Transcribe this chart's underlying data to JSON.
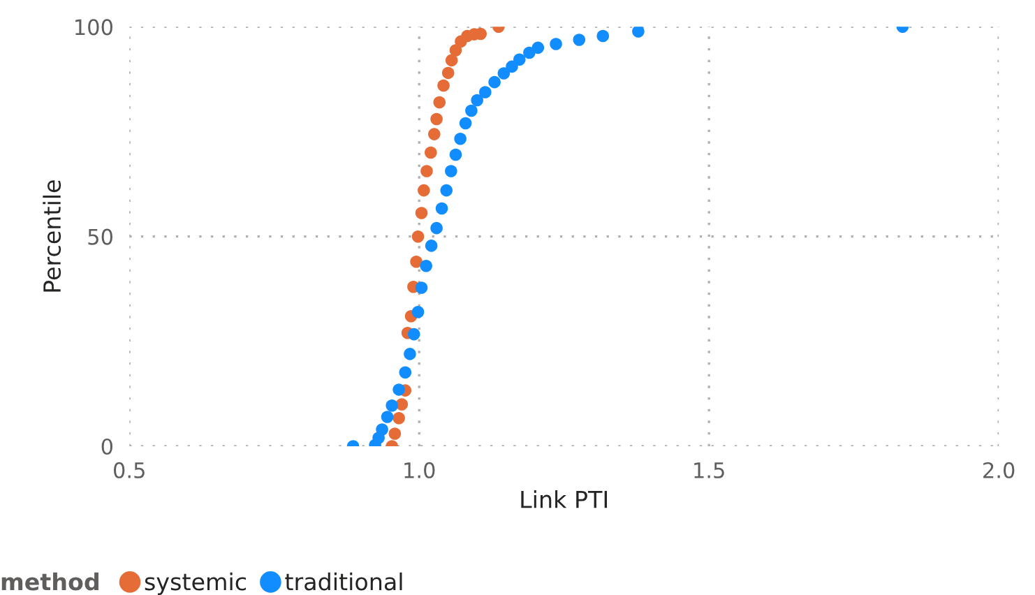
{
  "chart_data": {
    "type": "scatter",
    "xlabel": "Link PTI",
    "ylabel": "Percentile",
    "legend_title": "method",
    "legend": "bottom left",
    "grid": true,
    "marker": "circle",
    "xlim": [
      0.5,
      2.0
    ],
    "xticks": [
      0.5,
      {
        "value": 1.0,
        "label": "1.0"
      },
      1.5,
      {
        "value": 2.0,
        "label": "2.0"
      }
    ],
    "ylim": [
      0,
      100
    ],
    "yticks": [
      0,
      50,
      100
    ],
    "series": [
      {
        "name": "systemic",
        "color": "#e66c37",
        "x": [
          0.953,
          0.958,
          0.965,
          0.97,
          0.976,
          0.98,
          0.986,
          0.99,
          0.995,
          0.998,
          1.004,
          1.008,
          1.013,
          1.02,
          1.026,
          1.03,
          1.035,
          1.042,
          1.05,
          1.056,
          1.063,
          1.072,
          1.083,
          1.095,
          1.106,
          1.137
        ],
        "values": [
          0,
          3,
          6.7,
          10,
          13.3,
          27,
          31,
          38,
          44,
          50,
          55.6,
          61,
          65.6,
          70,
          74.4,
          78,
          82,
          86,
          89,
          92,
          94.4,
          96.5,
          97.8,
          98.2,
          98.3,
          100
        ]
      },
      {
        "name": "traditional",
        "color": "#118dff",
        "x": [
          0.886,
          0.924,
          0.93,
          0.936,
          0.945,
          0.953,
          0.965,
          0.976,
          0.984,
          0.991,
          0.998,
          1.004,
          1.012,
          1.021,
          1.03,
          1.039,
          1.047,
          1.055,
          1.063,
          1.071,
          1.08,
          1.09,
          1.1,
          1.114,
          1.13,
          1.146,
          1.16,
          1.173,
          1.19,
          1.205,
          1.236,
          1.276,
          1.317,
          1.378,
          1.834
        ],
        "values": [
          0,
          0.3,
          2,
          4,
          7,
          9.7,
          13.5,
          17.6,
          22,
          26.7,
          32,
          37.8,
          43,
          47.8,
          52,
          56.7,
          61,
          65.6,
          69.5,
          73.3,
          77,
          80,
          82.5,
          84.4,
          86.8,
          88.9,
          90.5,
          92.2,
          93.8,
          95,
          95.9,
          96.9,
          97.8,
          98.9,
          100
        ]
      }
    ]
  }
}
